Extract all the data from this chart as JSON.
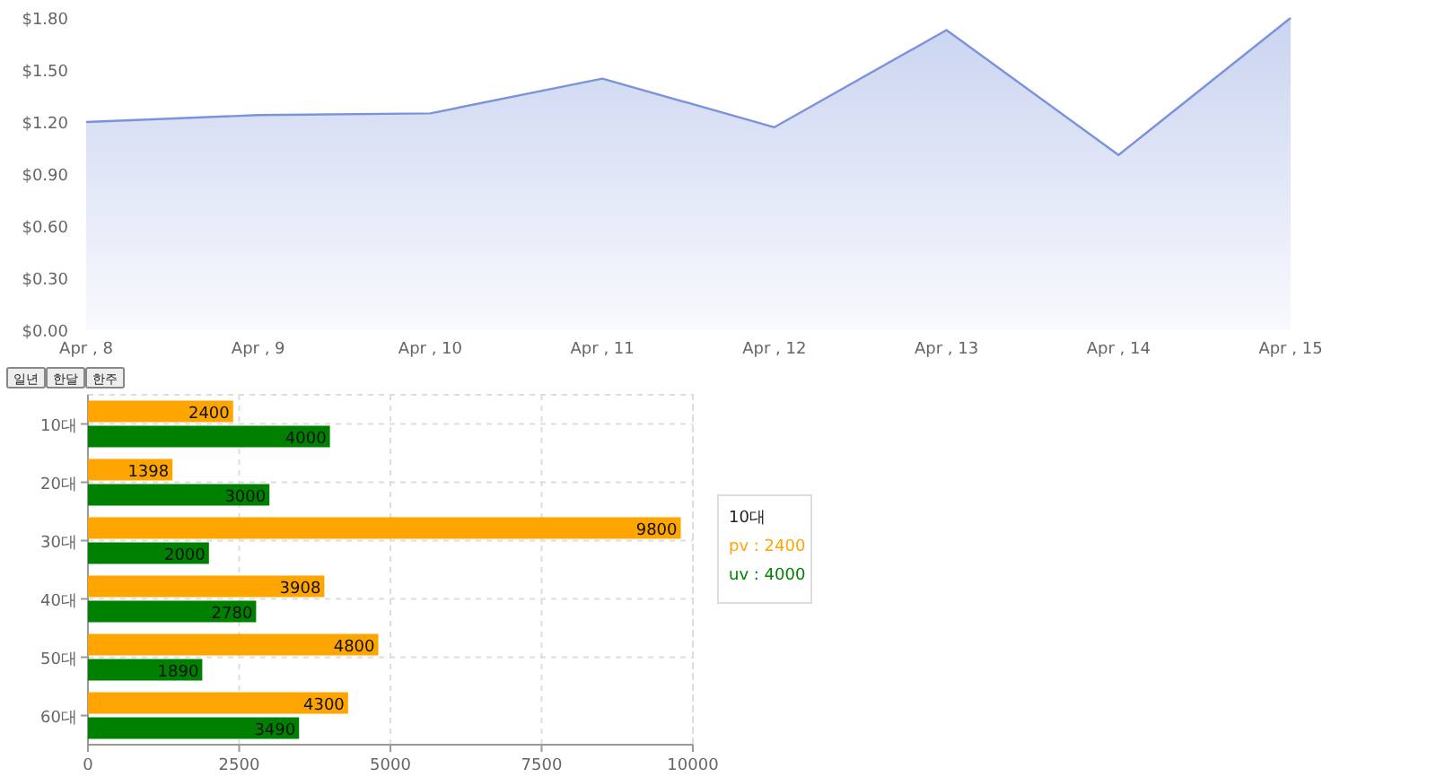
{
  "chart_data": [
    {
      "type": "area",
      "categories": [
        "Apr , 8",
        "Apr , 9",
        "Apr , 10",
        "Apr , 11",
        "Apr , 12",
        "Apr , 13",
        "Apr , 14",
        "Apr , 15"
      ],
      "series": [
        {
          "color": "#7b93db",
          "values": [
            1.2,
            1.24,
            1.25,
            1.45,
            1.17,
            1.73,
            1.01,
            1.8
          ]
        }
      ],
      "ylim": [
        0,
        1.8
      ],
      "yticks": [
        {
          "value": 0,
          "label": "$0.00"
        },
        {
          "value": 0.3,
          "label": "$0.30"
        },
        {
          "value": 0.6,
          "label": "$0.60"
        },
        {
          "value": 0.9,
          "label": "$0.90"
        },
        {
          "value": 1.2,
          "label": "$1.20"
        },
        {
          "value": 1.5,
          "label": "$1.50"
        },
        {
          "value": 1.8,
          "label": "$1.80"
        }
      ],
      "grid": false
    },
    {
      "type": "bar",
      "orientation": "horizontal",
      "categories": [
        "10대",
        "20대",
        "30대",
        "40대",
        "50대",
        "60대"
      ],
      "series": [
        {
          "color": "#ffa500",
          "values": [
            2400,
            1398,
            9800,
            3908,
            4800,
            4300
          ]
        },
        {
          "color": "#008000",
          "values": [
            4000,
            3000,
            2000,
            2780,
            1890,
            3490
          ]
        }
      ],
      "xlim": [
        0,
        10000
      ],
      "xticks": [
        0,
        2500,
        5000,
        7500,
        10000
      ],
      "grid": true,
      "data_labels": true,
      "annotations": [
        "일년",
        "한달",
        "한주",
        "10대",
        "pv : 2400",
        "uv : 4000"
      ]
    }
  ]
}
